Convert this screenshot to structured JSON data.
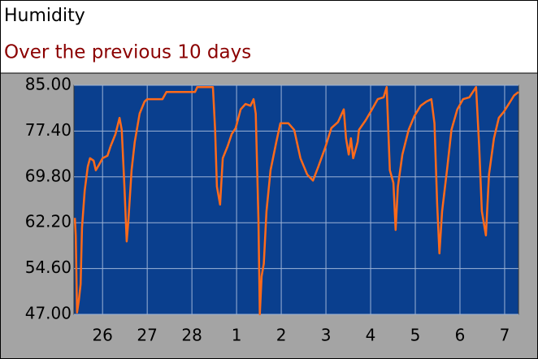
{
  "chart_data": {
    "type": "line",
    "title": "Humidity",
    "subtitle": "Over the previous 10 days",
    "color": "#ff6a1a",
    "grid": true,
    "xlim": [
      25.36,
      35.31
    ],
    "xticks": [
      26,
      27,
      28,
      {
        "value": 29,
        "label": "1"
      },
      {
        "value": 30,
        "label": "2"
      },
      {
        "value": 31,
        "label": "3"
      },
      {
        "value": 32,
        "label": "4"
      },
      {
        "value": 33,
        "label": "5"
      },
      {
        "value": 34,
        "label": "6"
      },
      {
        "value": 35,
        "label": "7"
      }
    ],
    "ylim": [
      47,
      85
    ],
    "yticks": [
      {
        "value": 47,
        "label": "47.00"
      },
      {
        "value": 54.6,
        "label": "54.60"
      },
      {
        "value": 62.2,
        "label": "62.20"
      },
      {
        "value": 69.8,
        "label": "69.80"
      },
      {
        "value": 77.4,
        "label": "77.40"
      },
      {
        "value": 85,
        "label": "85.00"
      }
    ],
    "x": [
      25.38,
      25.4,
      25.43,
      25.47,
      25.51,
      25.54,
      25.6,
      25.67,
      25.72,
      25.8,
      25.85,
      25.92,
      26.0,
      26.11,
      26.18,
      26.29,
      26.38,
      26.43,
      26.49,
      26.54,
      26.58,
      26.65,
      26.72,
      26.83,
      26.94,
      27.0,
      27.34,
      27.43,
      28.07,
      28.12,
      28.47,
      28.52,
      28.56,
      28.63,
      28.69,
      28.8,
      28.89,
      28.98,
      29.09,
      29.2,
      29.31,
      29.38,
      29.43,
      29.49,
      29.52,
      29.56,
      29.61,
      29.67,
      29.76,
      29.89,
      29.98,
      30.16,
      30.29,
      30.43,
      30.58,
      30.71,
      30.83,
      30.98,
      31.12,
      31.27,
      31.4,
      31.45,
      31.51,
      31.56,
      31.61,
      31.71,
      31.74,
      31.89,
      32.03,
      32.16,
      32.29,
      32.36,
      32.43,
      32.51,
      32.56,
      32.61,
      32.71,
      32.85,
      32.98,
      33.12,
      33.25,
      33.36,
      33.43,
      33.49,
      33.54,
      33.6,
      33.71,
      33.81,
      33.94,
      34.07,
      34.21,
      34.36,
      34.43,
      34.49,
      34.58,
      34.65,
      34.76,
      34.87,
      34.98,
      35.11,
      35.21,
      35.31
    ],
    "values": [
      63.0,
      60.1,
      47.3,
      49.3,
      52.0,
      61.4,
      67.5,
      71.5,
      72.9,
      72.5,
      70.9,
      71.8,
      72.9,
      73.3,
      74.9,
      76.9,
      79.6,
      77.6,
      68.2,
      59.1,
      62.8,
      70.9,
      75.6,
      80.3,
      82.3,
      82.7,
      82.7,
      83.9,
      83.9,
      84.7,
      84.7,
      77.6,
      68.2,
      65.2,
      72.9,
      74.9,
      76.9,
      77.9,
      81.0,
      81.9,
      81.6,
      82.7,
      80.3,
      62.8,
      47.0,
      53.3,
      55.4,
      64.1,
      70.9,
      75.6,
      78.7,
      78.7,
      77.6,
      72.9,
      70.2,
      69.2,
      71.5,
      74.6,
      77.9,
      78.9,
      81.0,
      76.2,
      73.5,
      76.2,
      72.9,
      75.6,
      77.6,
      79.2,
      81.0,
      82.7,
      83.0,
      84.7,
      70.9,
      68.8,
      61.0,
      68.2,
      73.5,
      77.6,
      79.9,
      81.6,
      82.3,
      82.7,
      78.7,
      65.4,
      57.1,
      64.1,
      70.9,
      77.6,
      81.0,
      82.7,
      83.0,
      84.7,
      74.9,
      64.1,
      60.1,
      70.2,
      76.2,
      79.6,
      80.6,
      82.1,
      83.3,
      83.9
    ]
  }
}
